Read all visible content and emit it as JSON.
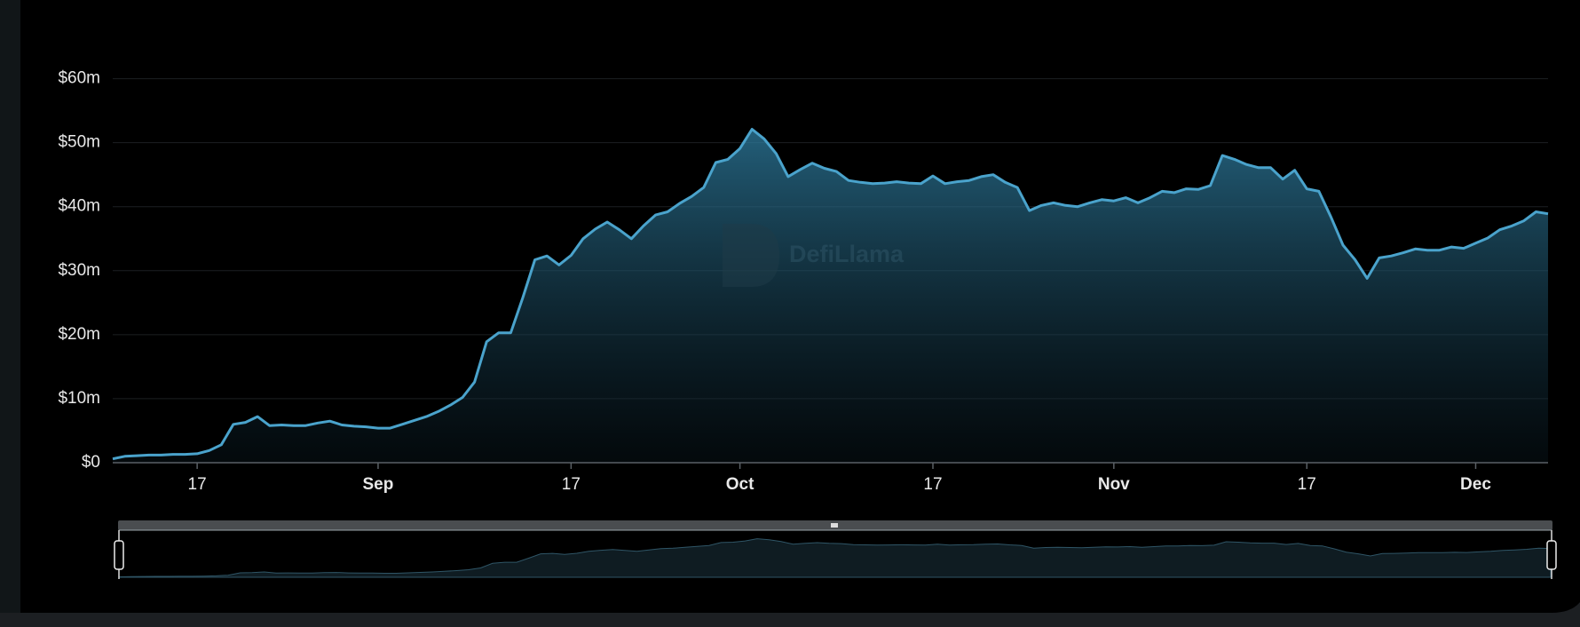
{
  "chart_data": {
    "type": "area",
    "watermark": "DefiLlama",
    "x": [
      "Aug 10",
      "Aug 11",
      "Aug 12",
      "Aug 13",
      "Aug 14",
      "Aug 15",
      "Aug 16",
      "Aug 17",
      "Aug 18",
      "Aug 19",
      "Aug 20",
      "Aug 21",
      "Aug 22",
      "Aug 23",
      "Aug 24",
      "Aug 25",
      "Aug 26",
      "Aug 27",
      "Aug 28",
      "Aug 29",
      "Aug 30",
      "Aug 31",
      "Sep 1",
      "Sep 2",
      "Sep 3",
      "Sep 4",
      "Sep 5",
      "Sep 6",
      "Sep 7",
      "Sep 8",
      "Sep 9",
      "Sep 10",
      "Sep 11",
      "Sep 12",
      "Sep 13",
      "Sep 14",
      "Sep 15",
      "Sep 16",
      "Sep 17",
      "Sep 18",
      "Sep 19",
      "Sep 20",
      "Sep 21",
      "Sep 22",
      "Sep 23",
      "Sep 24",
      "Sep 25",
      "Sep 26",
      "Sep 27",
      "Sep 28",
      "Sep 29",
      "Sep 30",
      "Oct 1",
      "Oct 2",
      "Oct 3",
      "Oct 4",
      "Oct 5",
      "Oct 6",
      "Oct 7",
      "Oct 8",
      "Oct 9",
      "Oct 10",
      "Oct 11",
      "Oct 12",
      "Oct 13",
      "Oct 14",
      "Oct 15",
      "Oct 16",
      "Oct 17",
      "Oct 18",
      "Oct 19",
      "Oct 20",
      "Oct 21",
      "Oct 22",
      "Oct 23",
      "Oct 24",
      "Oct 25",
      "Oct 26",
      "Oct 27",
      "Oct 28",
      "Oct 29",
      "Oct 30",
      "Oct 31",
      "Nov 1",
      "Nov 2",
      "Nov 3",
      "Nov 4",
      "Nov 5",
      "Nov 6",
      "Nov 7",
      "Nov 8",
      "Nov 9",
      "Nov 10",
      "Nov 11",
      "Nov 12",
      "Nov 13",
      "Nov 14",
      "Nov 15",
      "Nov 16",
      "Nov 17",
      "Nov 18",
      "Nov 19",
      "Nov 20",
      "Nov 21",
      "Nov 22",
      "Nov 23",
      "Nov 24",
      "Nov 25",
      "Nov 26",
      "Nov 27",
      "Nov 28",
      "Nov 29",
      "Nov 30",
      "Dec 1",
      "Dec 2",
      "Dec 3",
      "Dec 4",
      "Dec 5",
      "Dec 6",
      "Dec 7"
    ],
    "values": [
      0.6,
      1.0,
      1.1,
      1.2,
      1.2,
      1.3,
      1.3,
      1.4,
      1.9,
      2.8,
      6.0,
      6.3,
      7.2,
      5.8,
      5.9,
      5.8,
      5.8,
      6.2,
      6.5,
      5.9,
      5.7,
      5.6,
      5.4,
      5.4,
      6.0,
      6.6,
      7.2,
      8.0,
      9.0,
      10.2,
      12.6,
      18.9,
      20.3,
      20.3,
      25.8,
      31.7,
      32.3,
      30.9,
      32.4,
      35.0,
      36.5,
      37.6,
      36.4,
      35.0,
      37.0,
      38.7,
      39.2,
      40.5,
      41.6,
      43.0,
      46.9,
      47.4,
      49.1,
      52.1,
      50.6,
      48.3,
      44.7,
      45.8,
      46.8,
      46.0,
      45.5,
      44.1,
      43.8,
      43.6,
      43.7,
      43.9,
      43.7,
      43.6,
      44.8,
      43.6,
      43.9,
      44.1,
      44.7,
      45.0,
      43.8,
      43.0,
      39.4,
      40.2,
      40.6,
      40.2,
      40.0,
      40.6,
      41.1,
      40.9,
      41.4,
      40.6,
      41.4,
      42.4,
      42.2,
      42.8,
      42.7,
      43.3,
      48.0,
      47.4,
      46.6,
      46.1,
      46.1,
      44.3,
      45.7,
      42.8,
      42.4,
      38.4,
      34.0,
      31.7,
      28.8,
      32.0,
      32.3,
      32.8,
      33.4,
      33.2,
      33.2,
      33.7,
      33.5,
      34.3,
      35.1,
      36.4,
      37.0,
      37.8,
      39.2,
      38.9
    ],
    "color": "#4aa3cc",
    "ylim": [
      0,
      60
    ],
    "yticks": [
      {
        "value": 0,
        "label": "$0"
      },
      {
        "value": 10,
        "label": "$10m"
      },
      {
        "value": 20,
        "label": "$20m"
      },
      {
        "value": 30,
        "label": "$30m"
      },
      {
        "value": 40,
        "label": "$40m"
      },
      {
        "value": 50,
        "label": "$50m"
      },
      {
        "value": 60,
        "label": "$60m"
      }
    ],
    "xticks": [
      {
        "value": "Aug 17",
        "label": "17"
      },
      {
        "value": "Sep 1",
        "label": "Sep"
      },
      {
        "value": "Sep 17",
        "label": "17"
      },
      {
        "value": "Oct 1",
        "label": "Oct"
      },
      {
        "value": "Oct 17",
        "label": "17"
      },
      {
        "value": "Nov 1",
        "label": "Nov"
      },
      {
        "value": "Nov 17",
        "label": "17"
      },
      {
        "value": "Dec 1",
        "label": "Dec"
      }
    ],
    "grid": true
  }
}
